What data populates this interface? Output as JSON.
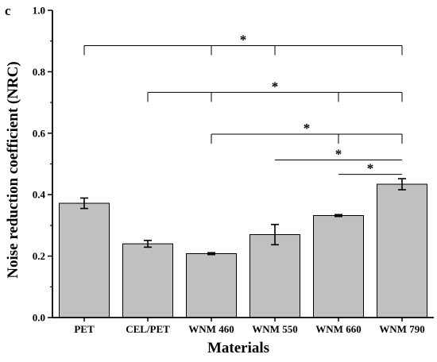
{
  "chart_data": {
    "type": "bar",
    "panel_label": "c",
    "title": "",
    "xlabel": "Materials",
    "ylabel": "Noise reduction coefficient (NRC)",
    "categories": [
      "PET",
      "CEL/PET",
      "WNM 460",
      "WNM 550",
      "WNM 660",
      "WNM 790"
    ],
    "values": [
      0.372,
      0.24,
      0.208,
      0.27,
      0.332,
      0.434
    ],
    "errors": [
      0.017,
      0.011,
      0.003,
      0.033,
      0.003,
      0.018
    ],
    "ylim": [
      0.0,
      1.0
    ],
    "yticks": [
      0.0,
      0.2,
      0.4,
      0.6,
      0.8,
      1.0
    ],
    "ytick_labels": [
      "0.0",
      "0.2",
      "0.4",
      "0.6",
      "0.8",
      "1.0"
    ],
    "grid": false,
    "bar_color": "#c0c0c0",
    "significance": [
      {
        "from": 0,
        "to": 5,
        "drops": [
          0,
          2,
          3,
          5
        ],
        "level": 0.885,
        "label": "*"
      },
      {
        "from": 1,
        "to": 5,
        "drops": [
          1,
          2,
          4,
          5
        ],
        "level": 0.733,
        "label": "*"
      },
      {
        "from": 2,
        "to": 5,
        "drops": [
          2,
          4,
          5
        ],
        "level": 0.597,
        "label": "*"
      },
      {
        "from": 3,
        "to": 5,
        "drops": [],
        "level": 0.513,
        "label": "*"
      },
      {
        "from": 4,
        "to": 5,
        "drops": [],
        "level": 0.466,
        "label": "*"
      }
    ]
  }
}
